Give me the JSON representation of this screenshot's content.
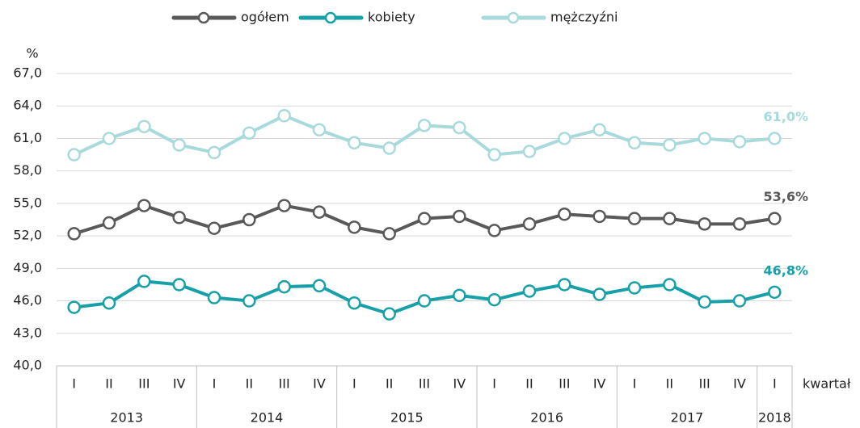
{
  "chart_data": {
    "type": "line",
    "y_label": "%",
    "x_label": "kwartał",
    "categories": [
      "I",
      "II",
      "III",
      "IV",
      "I",
      "II",
      "III",
      "IV",
      "I",
      "II",
      "III",
      "IV",
      "I",
      "II",
      "III",
      "IV",
      "I",
      "II",
      "III",
      "IV",
      "I"
    ],
    "groups": [
      {
        "label": "2013",
        "span": 4
      },
      {
        "label": "2014",
        "span": 4
      },
      {
        "label": "2015",
        "span": 4
      },
      {
        "label": "2016",
        "span": 4
      },
      {
        "label": "2017",
        "span": 4
      },
      {
        "label": "2018",
        "span": 1
      }
    ],
    "ylim": [
      40,
      67
    ],
    "yticks": [
      {
        "value": 40,
        "label": "40,0"
      },
      {
        "value": 43,
        "label": "43,0"
      },
      {
        "value": 46,
        "label": "46,0"
      },
      {
        "value": 49,
        "label": "49,0"
      },
      {
        "value": 52,
        "label": "52,0"
      },
      {
        "value": 55,
        "label": "55,0"
      },
      {
        "value": 58,
        "label": "58,0"
      },
      {
        "value": 61,
        "label": "61,0"
      },
      {
        "value": 64,
        "label": "64,0"
      },
      {
        "value": 67,
        "label": "67,0"
      }
    ],
    "grid": true,
    "legend": "top",
    "series": [
      {
        "name": "ogółem",
        "color": "#595959",
        "values": [
          52.2,
          53.2,
          54.8,
          53.7,
          52.7,
          53.5,
          54.8,
          54.2,
          52.8,
          52.2,
          53.6,
          53.8,
          52.5,
          53.1,
          54.0,
          53.8,
          53.6,
          53.6,
          53.1,
          53.1,
          53.6
        ],
        "value_labels": [
          null,
          null,
          null,
          null,
          null,
          null,
          null,
          null,
          null,
          null,
          null,
          null,
          null,
          null,
          null,
          null,
          null,
          null,
          null,
          null,
          "53,6%"
        ]
      },
      {
        "name": "kobiety",
        "color": "#17a0a8",
        "values": [
          45.4,
          45.8,
          47.8,
          47.5,
          46.3,
          46.0,
          47.3,
          47.4,
          45.8,
          44.8,
          46.0,
          46.5,
          46.1,
          46.9,
          47.5,
          46.6,
          47.2,
          47.5,
          45.9,
          46.0,
          46.8
        ],
        "value_labels": [
          null,
          null,
          null,
          null,
          null,
          null,
          null,
          null,
          null,
          null,
          null,
          null,
          null,
          null,
          null,
          null,
          null,
          null,
          null,
          null,
          "46,8%"
        ]
      },
      {
        "name": "mężczyźni",
        "color": "#a8dadc",
        "values": [
          59.5,
          61.0,
          62.1,
          60.4,
          59.7,
          61.5,
          63.1,
          61.8,
          60.6,
          60.1,
          62.2,
          62.0,
          59.5,
          59.8,
          61.0,
          61.8,
          60.6,
          60.4,
          61.0,
          60.7,
          61.0
        ],
        "value_labels": [
          null,
          null,
          null,
          null,
          null,
          null,
          null,
          null,
          null,
          null,
          null,
          null,
          null,
          null,
          null,
          null,
          null,
          null,
          null,
          null,
          "61,0%"
        ]
      }
    ]
  }
}
